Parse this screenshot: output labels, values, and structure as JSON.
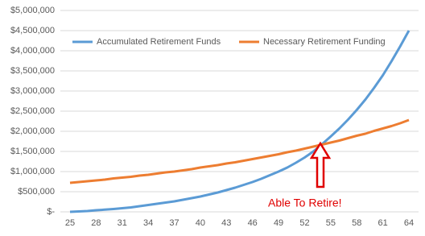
{
  "chart_data": {
    "type": "line",
    "x": [
      25,
      26,
      27,
      28,
      29,
      30,
      31,
      32,
      33,
      34,
      35,
      36,
      37,
      38,
      39,
      40,
      41,
      42,
      43,
      44,
      45,
      46,
      47,
      48,
      49,
      50,
      51,
      52,
      53,
      54,
      55,
      56,
      57,
      58,
      59,
      60,
      61,
      62,
      63,
      64
    ],
    "xlim": [
      25,
      64
    ],
    "xticks": [
      25,
      28,
      31,
      34,
      37,
      40,
      43,
      46,
      49,
      52,
      55,
      58,
      61,
      64
    ],
    "ylim": [
      0,
      5000000
    ],
    "yticks": [
      {
        "value": 0,
        "label": "$-"
      },
      {
        "value": 500000,
        "label": "$500,000"
      },
      {
        "value": 1000000,
        "label": "$1,000,000"
      },
      {
        "value": 1500000,
        "label": "$1,500,000"
      },
      {
        "value": 2000000,
        "label": "$2,000,000"
      },
      {
        "value": 2500000,
        "label": "$2,500,000"
      },
      {
        "value": 3000000,
        "label": "$3,000,000"
      },
      {
        "value": 3500000,
        "label": "$3,500,000"
      },
      {
        "value": 4000000,
        "label": "$4,000,000"
      },
      {
        "value": 4500000,
        "label": "$4,500,000"
      },
      {
        "value": 5000000,
        "label": "$5,000,000"
      }
    ],
    "grid": true,
    "legend": "top",
    "series": [
      {
        "name": "Accumulated Retirement Funds",
        "color": "#5b9bd5",
        "values": [
          0,
          10000,
          20000,
          40000,
          55000,
          70000,
          90000,
          110000,
          140000,
          170000,
          200000,
          230000,
          260000,
          300000,
          340000,
          380000,
          430000,
          480000,
          540000,
          600000,
          670000,
          740000,
          820000,
          910000,
          1000000,
          1100000,
          1220000,
          1350000,
          1500000,
          1680000,
          1870000,
          2070000,
          2290000,
          2530000,
          2790000,
          3080000,
          3390000,
          3740000,
          4110000,
          4500000
        ]
      },
      {
        "name": "Necessary Retirement Funding",
        "color": "#ed7d31",
        "values": [
          720000,
          740000,
          760000,
          780000,
          800000,
          830000,
          850000,
          870000,
          900000,
          920000,
          950000,
          980000,
          1000000,
          1030000,
          1060000,
          1100000,
          1130000,
          1160000,
          1200000,
          1230000,
          1270000,
          1310000,
          1350000,
          1390000,
          1430000,
          1480000,
          1520000,
          1570000,
          1620000,
          1670000,
          1720000,
          1770000,
          1830000,
          1890000,
          1940000,
          2010000,
          2070000,
          2130000,
          2200000,
          2280000
        ]
      }
    ],
    "annotation": "Able To Retire!"
  }
}
